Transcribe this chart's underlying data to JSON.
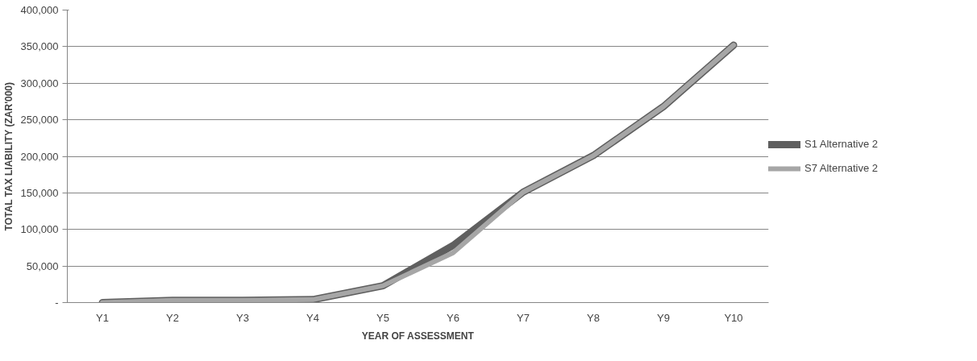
{
  "chart_data": {
    "type": "line",
    "xlabel": "YEAR OF ASSESSMENT",
    "ylabel": "TOTAL TAX LIABILITY (ZAR'000)",
    "categories": [
      "Y1",
      "Y2",
      "Y3",
      "Y4",
      "Y5",
      "Y6",
      "Y7",
      "Y8",
      "Y9",
      "Y10"
    ],
    "series": [
      {
        "name": "S1 Alternative 2",
        "color": "#5f5f5f",
        "values": [
          0,
          3000,
          3000,
          4000,
          23000,
          78000,
          151000,
          201000,
          268000,
          352000
        ]
      },
      {
        "name": "S7 Alternative 2",
        "color": "#a6a6a6",
        "values": [
          0,
          3000,
          3000,
          4000,
          23000,
          68000,
          151000,
          201000,
          268000,
          352000
        ]
      }
    ],
    "ylim": [
      0,
      400000
    ],
    "yticks": [
      {
        "value": 0,
        "label": "-"
      },
      {
        "value": 50000,
        "label": "50,000"
      },
      {
        "value": 100000,
        "label": "100,000"
      },
      {
        "value": 150000,
        "label": "150,000"
      },
      {
        "value": 200000,
        "label": "200,000"
      },
      {
        "value": 250000,
        "label": "250,000"
      },
      {
        "value": 300000,
        "label": "300,000"
      },
      {
        "value": 350000,
        "label": "350,000"
      },
      {
        "value": 400000,
        "label": "400,000"
      }
    ],
    "grid": "y",
    "legend": "right",
    "marker": "none",
    "line_style": "solid"
  }
}
